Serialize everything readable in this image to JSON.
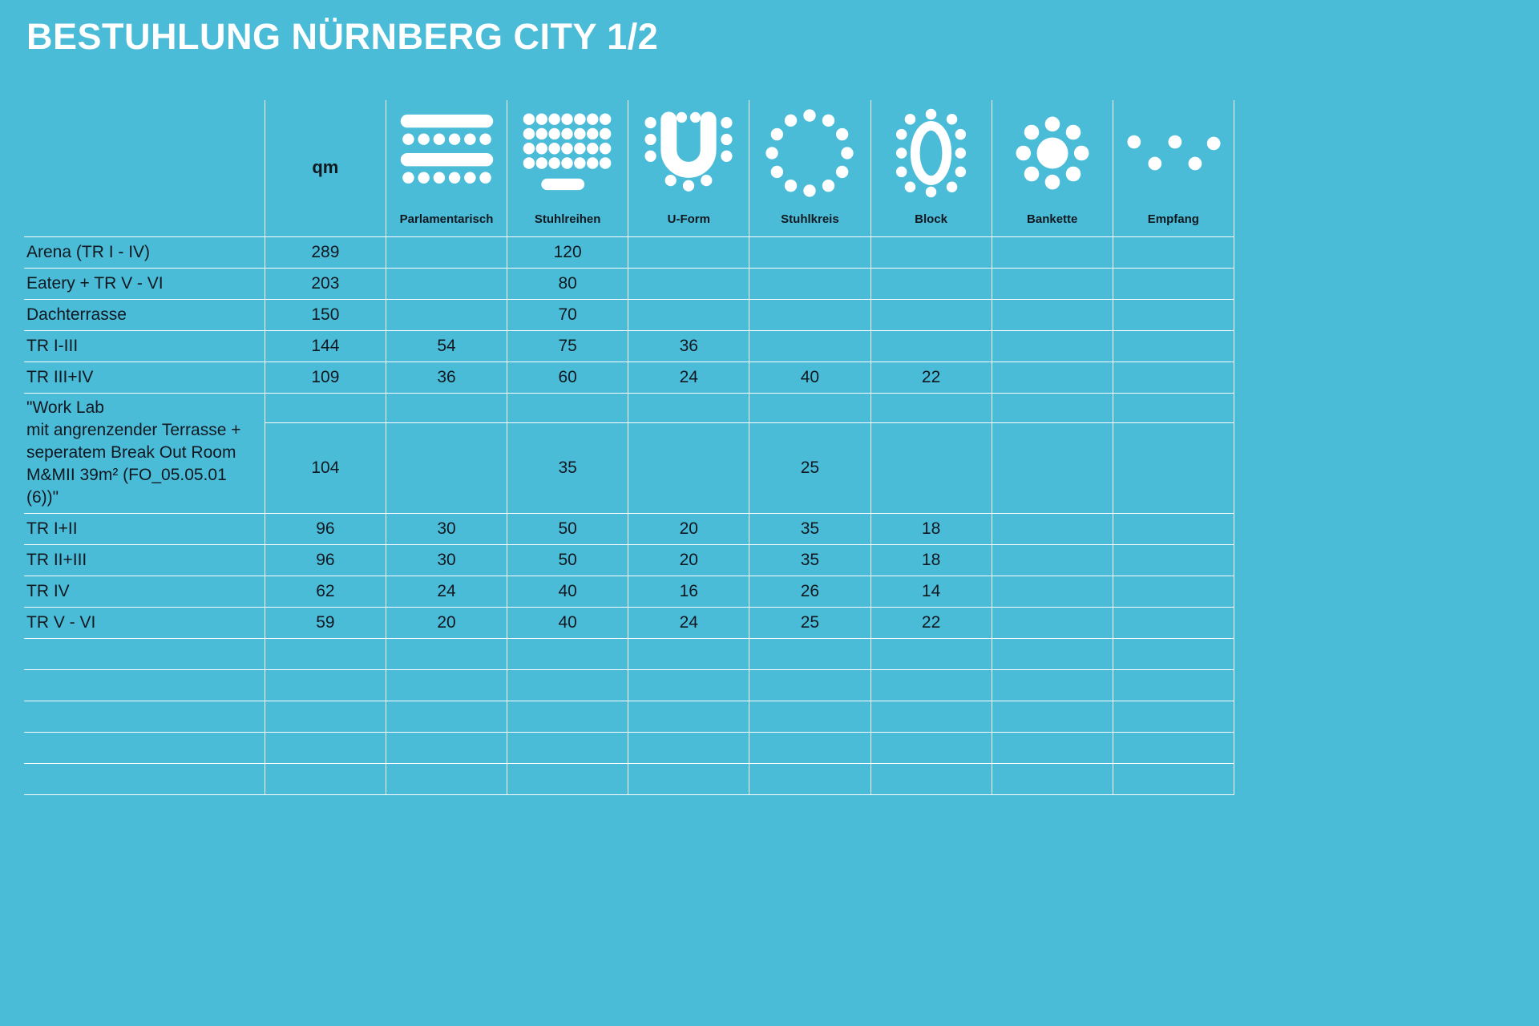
{
  "title": "BESTUHLUNG NÜRNBERG CITY 1/2",
  "table": {
    "qm_label": "qm",
    "columns": [
      {
        "key": "parlamentarisch",
        "label": "Parlamentarisch",
        "icon": "parlamentarisch-icon"
      },
      {
        "key": "stuhlreihen",
        "label": "Stuhlreihen",
        "icon": "stuhlreihen-icon"
      },
      {
        "key": "uform",
        "label": "U-Form",
        "icon": "u-form-icon"
      },
      {
        "key": "stuhlkreis",
        "label": "Stuhlkreis",
        "icon": "stuhlkreis-icon"
      },
      {
        "key": "block",
        "label": "Block",
        "icon": "block-icon"
      },
      {
        "key": "bankette",
        "label": "Bankette",
        "icon": "bankette-icon"
      },
      {
        "key": "empfang",
        "label": "Empfang",
        "icon": "empfang-icon"
      }
    ],
    "rows": [
      {
        "name": "Arena (TR I - IV)",
        "cells": [
          "289",
          "",
          "120",
          "",
          "",
          "",
          "",
          ""
        ]
      },
      {
        "name": "Eatery + TR V - VI",
        "cells": [
          "203",
          "",
          "80",
          "",
          "",
          "",
          "",
          ""
        ]
      },
      {
        "name": "Dachterrasse",
        "cells": [
          "150",
          "",
          "70",
          "",
          "",
          "",
          "",
          ""
        ]
      },
      {
        "name": "TR I-III",
        "cells": [
          "144",
          "54",
          "75",
          "36",
          "",
          "",
          "",
          ""
        ]
      },
      {
        "name": "TR III+IV",
        "cells": [
          "109",
          "36",
          "60",
          "24",
          "40",
          "22",
          "",
          ""
        ]
      },
      {
        "name_lines": [
          "\"Work Lab",
          "mit angrenzender Terrasse +",
          "seperatem Break Out Room",
          "M&MII 39m² (FO_05.05.01",
          "(6))\""
        ],
        "cells": [
          "104",
          "",
          "35",
          "",
          "25",
          "",
          "",
          ""
        ]
      },
      {
        "name": "TR I+II",
        "cells": [
          "96",
          "30",
          "50",
          "20",
          "35",
          "18",
          "",
          ""
        ]
      },
      {
        "name": "TR II+III",
        "cells": [
          "96",
          "30",
          "50",
          "20",
          "35",
          "18",
          "",
          ""
        ]
      },
      {
        "name": "TR IV",
        "cells": [
          "62",
          "24",
          "40",
          "16",
          "26",
          "14",
          "",
          ""
        ]
      },
      {
        "name": "TR V - VI",
        "cells": [
          "59",
          "20",
          "40",
          "24",
          "25",
          "22",
          "",
          ""
        ]
      }
    ],
    "empty_row_count": 5
  },
  "colors": {
    "background": "#4abcd8",
    "text": "#101820",
    "line": "#ffffff",
    "icon": "#ffffff"
  }
}
